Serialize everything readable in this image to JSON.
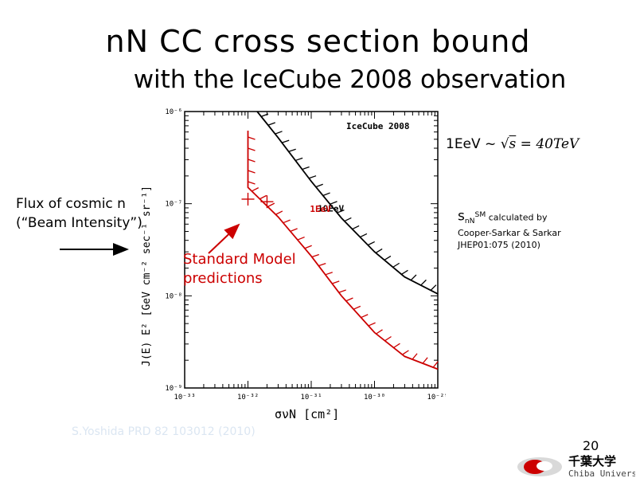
{
  "slide": {
    "title_line1": "nN CC cross section bound",
    "title_line2": "with the IceCube 2008 observation",
    "flux_line1": "Flux of cosmic n",
    "flux_line2": "(“Beam Intensity”)",
    "sm_line1": "Standard Model",
    "sm_line2": "predictions",
    "formula_left": "1EeV ~ ",
    "formula_sqrt_s": "s",
    "formula_right": " = 40TeV",
    "sigma_sym": "s",
    "sigma_sub": "nN",
    "sigma_sup": "SM",
    "sigma_note": "calculated by Cooper-Sarkar & Sarkar JHEP01:075 (2010)",
    "citation": "S.Yoshida PRD 82 103012 (2010)",
    "page_number": "20",
    "logo_text_jp": "千葉大学",
    "logo_text_en": "Chiba University"
  },
  "chart_data": {
    "type": "line",
    "xlabel": "σνN [cm²]",
    "ylabel": "J(E) E² [GeV cm⁻² sec⁻¹ sr⁻¹]",
    "x_scale": "log",
    "y_scale": "log",
    "xlim": [
      1e-33,
      1e-29
    ],
    "ylim": [
      1e-09,
      1e-06
    ],
    "x_tick_labels": [
      "10⁻³³",
      "10⁻³²",
      "10⁻³¹",
      "10⁻³⁰",
      "10⁻²⁹"
    ],
    "y_tick_labels": [
      "10⁻⁶",
      "10⁻⁷",
      "10⁻⁸",
      "10⁻⁹"
    ],
    "legend_text": "IceCube 2008",
    "series": [
      {
        "name": "10EeV",
        "color": "#000000",
        "points": [
          [
            1.4e-32,
            1e-06
          ],
          [
            3e-32,
            5.2e-07
          ],
          [
            1e-31,
            1.75e-07
          ],
          [
            3e-31,
            7e-08
          ],
          [
            1e-30,
            3e-08
          ],
          [
            3e-30,
            1.6e-08
          ],
          [
            1e-29,
            1.05e-08
          ]
        ]
      },
      {
        "name": "1EeV",
        "color": "#cc0000",
        "points": [
          [
            1e-32,
            6.2e-07
          ],
          [
            1e-32,
            1.5e-07
          ],
          [
            3e-32,
            7.2e-08
          ],
          [
            1e-31,
            2.7e-08
          ],
          [
            3e-31,
            1e-08
          ],
          [
            1e-30,
            4e-09
          ],
          [
            3e-30,
            2.2e-09
          ],
          [
            1e-29,
            1.6e-09
          ]
        ]
      }
    ],
    "sm_predictions": [
      {
        "x": 1e-32,
        "y": 1.12e-07
      },
      {
        "x": 2e-32,
        "y": 1.05e-07
      }
    ]
  }
}
